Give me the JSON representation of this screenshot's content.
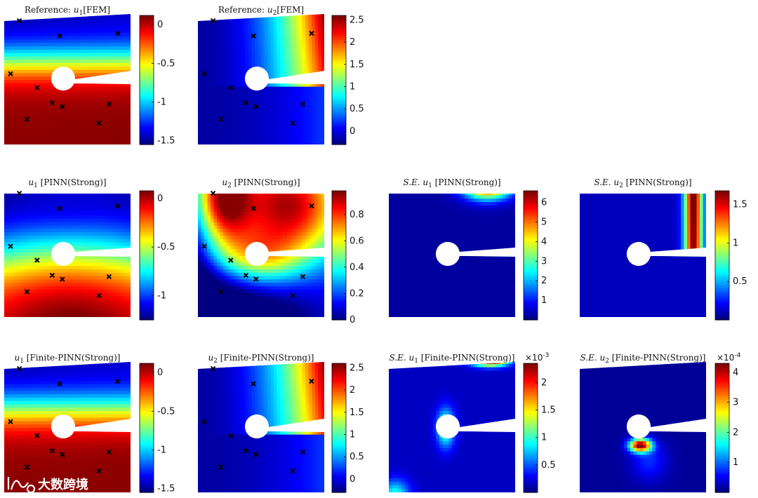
{
  "watermark": {
    "icon": "kuajing-logo-icon",
    "text": "大数跨境"
  },
  "colormap": "jet",
  "chart_data": [
    {
      "type": "heatmap",
      "id": "ref-u1",
      "title_math": "u",
      "title_sub": "1",
      "title_pre": "Reference: ",
      "title_post": "[FEM]",
      "field": "u1_ref",
      "range": [
        -1.55,
        0.12
      ],
      "colorbar_ticks": [
        {
          "v": 0,
          "t": "0"
        },
        {
          "v": -0.5,
          "t": "-0.5"
        },
        {
          "v": -1,
          "t": "-1"
        },
        {
          "v": -1.5,
          "t": "-1.5"
        }
      ],
      "exponent": "",
      "markers": true,
      "deformed": true
    },
    {
      "type": "heatmap",
      "id": "ref-u2",
      "title_math": "u",
      "title_sub": "2",
      "title_pre": "Reference: ",
      "title_post": "[FEM]",
      "field": "u2_ref",
      "range": [
        -0.3,
        2.6
      ],
      "colorbar_ticks": [
        {
          "v": 2.5,
          "t": "2.5"
        },
        {
          "v": 2,
          "t": "2"
        },
        {
          "v": 1.5,
          "t": "1.5"
        },
        {
          "v": 1,
          "t": "1"
        },
        {
          "v": 0.5,
          "t": "0.5"
        },
        {
          "v": 0,
          "t": "0"
        }
      ],
      "exponent": "",
      "markers": true,
      "deformed": true
    },
    {
      "type": "heatmap",
      "id": "pinn-u1",
      "title_math": "u",
      "title_sub": "1",
      "title_pre": "",
      "title_post": " [PINN(Strong)]",
      "field": "u1_pinn",
      "range": [
        -1.25,
        0.08
      ],
      "colorbar_ticks": [
        {
          "v": 0,
          "t": "0"
        },
        {
          "v": -0.5,
          "t": "-0.5"
        },
        {
          "v": -1,
          "t": "-1"
        }
      ],
      "exponent": "",
      "markers": true,
      "deformed": false
    },
    {
      "type": "heatmap",
      "id": "pinn-u2",
      "title_math": "u",
      "title_sub": "2",
      "title_pre": "",
      "title_post": " [PINN(Strong)]",
      "field": "u2_pinn",
      "range": [
        0,
        0.98
      ],
      "colorbar_ticks": [
        {
          "v": 0.8,
          "t": "0.8"
        },
        {
          "v": 0.6,
          "t": "0.6"
        },
        {
          "v": 0.4,
          "t": "0.4"
        },
        {
          "v": 0.2,
          "t": "0.2"
        },
        {
          "v": 0,
          "t": "0"
        }
      ],
      "exponent": "",
      "markers": true,
      "deformed": false
    },
    {
      "type": "heatmap",
      "id": "pinn-se-u1",
      "title_math": "u",
      "title_sub": "1",
      "title_pre": "S.E. ",
      "title_post": " [PINN(Strong)]",
      "field": "se_u1_pinn",
      "range": [
        0,
        6.6
      ],
      "colorbar_ticks": [
        {
          "v": 6,
          "t": "6"
        },
        {
          "v": 5,
          "t": "5"
        },
        {
          "v": 4,
          "t": "4"
        },
        {
          "v": 3,
          "t": "3"
        },
        {
          "v": 2,
          "t": "2"
        },
        {
          "v": 1,
          "t": "1"
        }
      ],
      "exponent": "",
      "markers": false,
      "deformed": false
    },
    {
      "type": "heatmap",
      "id": "pinn-se-u2",
      "title_math": "u",
      "title_sub": "2",
      "title_pre": "S.E. ",
      "title_post": " [PINN(Strong)]",
      "field": "se_u2_pinn",
      "range": [
        0,
        1.68
      ],
      "colorbar_ticks": [
        {
          "v": 1.5,
          "t": "1.5"
        },
        {
          "v": 1,
          "t": "1"
        },
        {
          "v": 0.5,
          "t": "0.5"
        }
      ],
      "exponent": "",
      "markers": false,
      "deformed": false
    },
    {
      "type": "heatmap",
      "id": "fpinn-u1",
      "title_math": "u",
      "title_sub": "1",
      "title_pre": "",
      "title_post": " [Finite-PINN(Strong)]",
      "field": "u1_ref",
      "range": [
        -1.55,
        0.12
      ],
      "colorbar_ticks": [
        {
          "v": 0,
          "t": "0"
        },
        {
          "v": -0.5,
          "t": "-0.5"
        },
        {
          "v": -1,
          "t": "-1"
        },
        {
          "v": -1.5,
          "t": "-1.5"
        }
      ],
      "exponent": "",
      "markers": true,
      "deformed": true
    },
    {
      "type": "heatmap",
      "id": "fpinn-u2",
      "title_math": "u",
      "title_sub": "2",
      "title_pre": "",
      "title_post": " [Finite-PINN(Strong)]",
      "field": "u2_ref",
      "range": [
        -0.3,
        2.6
      ],
      "colorbar_ticks": [
        {
          "v": 2.5,
          "t": "2.5"
        },
        {
          "v": 2,
          "t": "2"
        },
        {
          "v": 1.5,
          "t": "1.5"
        },
        {
          "v": 1,
          "t": "1"
        },
        {
          "v": 0.5,
          "t": "0.5"
        },
        {
          "v": 0,
          "t": "0"
        }
      ],
      "exponent": "",
      "markers": true,
      "deformed": true
    },
    {
      "type": "heatmap",
      "id": "fpinn-se-u1",
      "title_math": "u",
      "title_sub": "1",
      "title_pre": "S.E. ",
      "title_post": " [Finite-PINN(Strong)]",
      "field": "se_u1_fpinn",
      "range": [
        0,
        2.35
      ],
      "colorbar_ticks": [
        {
          "v": 2,
          "t": "2"
        },
        {
          "v": 1.5,
          "t": "1.5"
        },
        {
          "v": 1,
          "t": "1"
        },
        {
          "v": 0.5,
          "t": "0.5"
        }
      ],
      "exponent": "-3",
      "markers": false,
      "deformed": true
    },
    {
      "type": "heatmap",
      "id": "fpinn-se-u2",
      "title_math": "u",
      "title_sub": "2",
      "title_pre": "S.E. ",
      "title_post": " [Finite-PINN(Strong)]",
      "field": "se_u2_fpinn",
      "range": [
        0,
        4.3
      ],
      "colorbar_ticks": [
        {
          "v": 4,
          "t": "4"
        },
        {
          "v": 3,
          "t": "3"
        },
        {
          "v": 2,
          "t": "2"
        },
        {
          "v": 1,
          "t": "1"
        }
      ],
      "exponent": "-4",
      "markers": false,
      "deformed": true
    }
  ]
}
